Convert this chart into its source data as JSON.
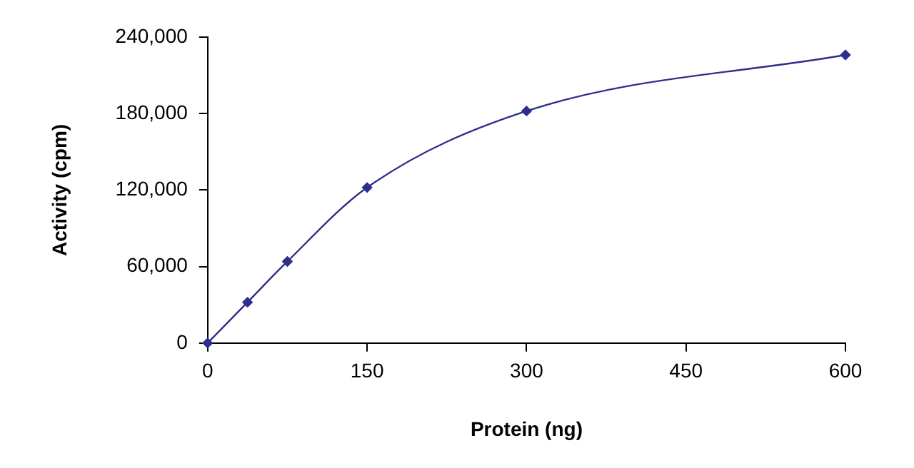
{
  "chart_data": {
    "type": "line",
    "xlabel": "Protein (ng)",
    "ylabel": "Activity (cpm)",
    "x": [
      0,
      37.5,
      75,
      150,
      300,
      600
    ],
    "series": [
      {
        "color": "#2e2e8c",
        "values": [
          0,
          32000,
          64000,
          122000,
          182000,
          226000
        ]
      }
    ],
    "xlim": [
      0,
      600
    ],
    "xticks": [
      0,
      150,
      300,
      450,
      600
    ],
    "ylim": [
      0,
      240000
    ],
    "yticks": [
      {
        "value": 0,
        "label": "0"
      },
      {
        "value": 60000,
        "label": "60,000"
      },
      {
        "value": 120000,
        "label": "120,000"
      },
      {
        "value": 180000,
        "label": "180,000"
      },
      {
        "value": 240000,
        "label": "240,000"
      }
    ],
    "grid": false,
    "legend": false,
    "marker": "diamond",
    "line_style": "solid"
  }
}
